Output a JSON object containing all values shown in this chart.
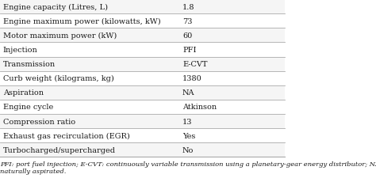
{
  "rows": [
    [
      "Engine capacity (Litres, L)",
      "1.8"
    ],
    [
      "Engine maximum power (kilowatts, kW)",
      "73"
    ],
    [
      "Motor maximum power (kW)",
      "60"
    ],
    [
      "Injection",
      "PFI"
    ],
    [
      "Transmission",
      "E-CVT"
    ],
    [
      "Curb weight (kilograms, kg)",
      "1380"
    ],
    [
      "Aspiration",
      "NA"
    ],
    [
      "Engine cycle",
      "Atkinson"
    ],
    [
      "Compression ratio",
      "13"
    ],
    [
      "Exhaust gas recirculation (EGR)",
      "Yes"
    ],
    [
      "Turbocharged/supercharged",
      "No"
    ]
  ],
  "footnote": "PFI: port fuel injection; E-CVT: continuously variable transmission using a planetary-gear energy distributor; NA:\nnaturally aspirated.",
  "col_split": 0.62,
  "row_colors": [
    "#f5f5f5",
    "#ffffff"
  ],
  "text_color": "#1a1a1a",
  "border_color": "#aaaaaa",
  "bg_color": "#ffffff",
  "font_size": 7.0,
  "footnote_font_size": 6.0
}
